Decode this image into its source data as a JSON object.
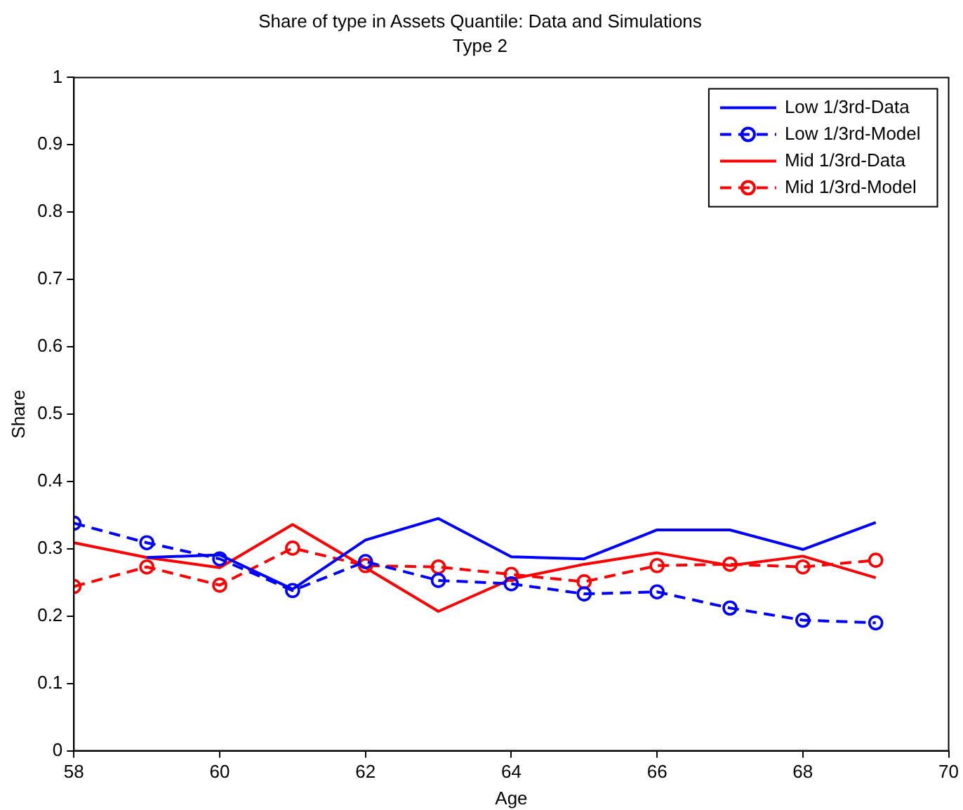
{
  "chart_data": {
    "type": "line",
    "title": "Share of type in Assets Quantile: Data and Simulations",
    "subtitle": "Type 2",
    "xlabel": "Age",
    "ylabel": "Share",
    "x": [
      58,
      59,
      60,
      61,
      62,
      63,
      64,
      65,
      66,
      67,
      68,
      69
    ],
    "xlim": [
      58,
      70
    ],
    "xticks": [
      58,
      60,
      62,
      64,
      66,
      68,
      70
    ],
    "ylim": [
      0,
      1
    ],
    "yticks": [
      0,
      0.1,
      0.2,
      0.3,
      0.4,
      0.5,
      0.6,
      0.7,
      0.8,
      0.9,
      1
    ],
    "grid": false,
    "legend": "top right",
    "series": [
      {
        "name": "Low 1/3rd-Data",
        "color": "#0000ff",
        "line_style": "solid",
        "marker": "none",
        "values": [
          null,
          0.287,
          0.291,
          0.24,
          0.313,
          0.345,
          0.288,
          0.285,
          0.328,
          0.328,
          0.299,
          0.339
        ]
      },
      {
        "name": "Low 1/3rd-Model",
        "color": "#0000ff",
        "line_style": "dashed",
        "marker": "circle",
        "values": [
          0.338,
          0.309,
          0.285,
          0.238,
          0.281,
          0.253,
          0.248,
          0.233,
          0.236,
          0.212,
          0.194,
          0.19
        ]
      },
      {
        "name": "Mid 1/3rd-Data",
        "color": "#ff0000",
        "line_style": "solid",
        "marker": "none",
        "values": [
          0.309,
          0.287,
          0.272,
          0.336,
          0.272,
          0.207,
          0.255,
          0.277,
          0.294,
          0.275,
          0.289,
          0.257
        ]
      },
      {
        "name": "Mid 1/3rd-Model",
        "color": "#ff0000",
        "line_style": "dashed",
        "marker": "circle",
        "values": [
          0.244,
          0.273,
          0.246,
          0.301,
          0.275,
          0.273,
          0.262,
          0.251,
          0.275,
          0.277,
          0.273,
          0.283
        ]
      }
    ]
  }
}
